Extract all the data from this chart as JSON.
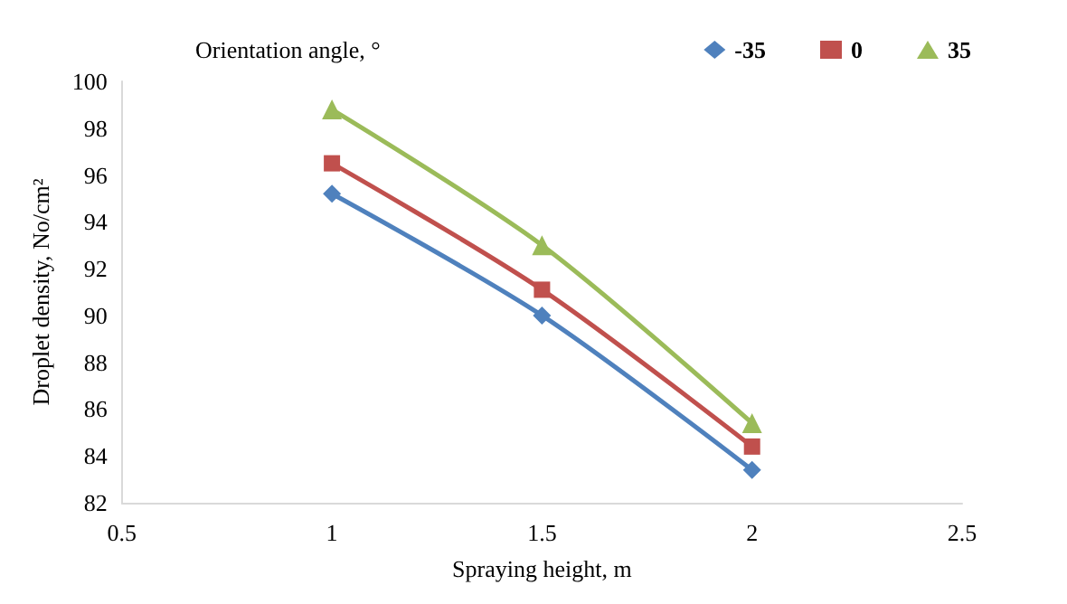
{
  "chart_data": {
    "type": "line",
    "xlabel": "Spraying height, m",
    "ylabel": "Droplet density, No/cm²",
    "legend_title": "Orientation angle, °",
    "x": [
      1,
      1.5,
      2
    ],
    "series": [
      {
        "name": "-35",
        "color": "#4f81bd",
        "marker": "diamond",
        "values": [
          95.2,
          90.0,
          83.4
        ]
      },
      {
        "name": "0",
        "color": "#c0504d",
        "marker": "square",
        "values": [
          96.5,
          91.1,
          84.4
        ]
      },
      {
        "name": "35",
        "color": "#9bbb59",
        "marker": "triangle",
        "values": [
          98.8,
          93.0,
          85.4
        ]
      }
    ],
    "xlim": [
      0.5,
      2.5
    ],
    "xticks": [
      0.5,
      1,
      1.5,
      2,
      2.5
    ],
    "ylim": [
      82,
      100
    ],
    "yticks": [
      82,
      84,
      86,
      88,
      90,
      92,
      94,
      96,
      98,
      100
    ],
    "grid": false,
    "legend": "top right",
    "line_style": "solid"
  }
}
